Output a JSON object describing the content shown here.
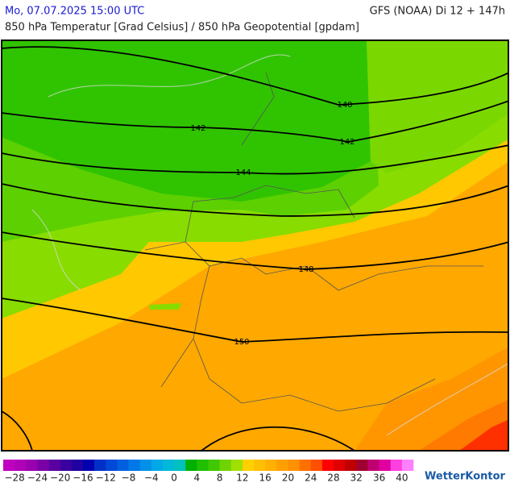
{
  "header": {
    "left": "Mo, 07.07.2025 15:00 UTC",
    "right": "GFS (NOAA) Di 12 + 147h",
    "subtitle": "850 hPa Temperatur [Grad Celsius] / 850 hPa Geopotential [gpdam]"
  },
  "map": {
    "contour_labels": [
      "140",
      "142",
      "142",
      "144",
      "148",
      "150"
    ]
  },
  "colorbar": {
    "colors": [
      "#c000c0",
      "#b000b8",
      "#9a00b0",
      "#7a00a8",
      "#5a00a0",
      "#3c00a0",
      "#2000a0",
      "#0000b0",
      "#0030c8",
      "#0048d8",
      "#0060e0",
      "#0078e8",
      "#0090e8",
      "#00a8e8",
      "#00b8d8",
      "#00c0c0",
      "#00b000",
      "#20c000",
      "#40c800",
      "#70d400",
      "#a0e000",
      "#ffd000",
      "#ffc000",
      "#ffb000",
      "#ffa000",
      "#ff9000",
      "#ff7000",
      "#ff5000",
      "#ff0000",
      "#e00000",
      "#c00000",
      "#a00030",
      "#c00070",
      "#e000a0",
      "#ff40e0",
      "#ff80ff"
    ],
    "labels": [
      "−28",
      "−24",
      "−20",
      "−16",
      "−12",
      "−8",
      "−4",
      "0",
      "4",
      "8",
      "12",
      "16",
      "20",
      "24",
      "28",
      "32",
      "36",
      "40"
    ]
  },
  "logo": "WetterKontor"
}
